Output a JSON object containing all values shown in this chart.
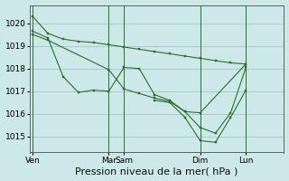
{
  "background_color": "#cce8e8",
  "grid_color": "#aacccc",
  "line_color": "#2d6e2d",
  "ylabel_ticks": [
    1015,
    1016,
    1017,
    1018,
    1019,
    1020
  ],
  "ylim": [
    1014.3,
    1020.8
  ],
  "xlabel": "Pression niveau de la mer( hPa )",
  "xlabel_fontsize": 8,
  "tick_fontsize": 6.5,
  "xlim": [
    -0.2,
    16.5
  ],
  "xtick_positions": [
    0,
    5,
    6,
    11,
    14
  ],
  "xtick_labels": [
    "Ven",
    "Mar",
    "Sam",
    "Dim",
    "Lun"
  ],
  "vline_positions": [
    0,
    5,
    6,
    11,
    14
  ],
  "s1_x": [
    0,
    1,
    2,
    3,
    4,
    5,
    6,
    7,
    8,
    9,
    10,
    11,
    12,
    13,
    14
  ],
  "s1_y": [
    1020.3,
    1019.55,
    1019.3,
    1019.2,
    1019.15,
    1019.05,
    1018.95,
    1018.85,
    1018.75,
    1018.65,
    1018.55,
    1018.45,
    1018.35,
    1018.25,
    1018.2
  ],
  "s2_x": [
    0,
    1,
    2,
    3,
    4,
    5,
    6,
    7,
    8,
    9,
    10,
    11,
    14
  ],
  "s2_y": [
    1019.65,
    1019.35,
    1017.65,
    1016.95,
    1017.05,
    1017.0,
    1018.05,
    1018.0,
    1016.85,
    1016.6,
    1016.1,
    1016.05,
    1018.2
  ],
  "s3_x": [
    0,
    1,
    5,
    6,
    7,
    8,
    9,
    10,
    11,
    12,
    13,
    14
  ],
  "s3_y": [
    1019.5,
    1019.25,
    1017.95,
    1017.1,
    1016.9,
    1016.7,
    1016.55,
    1016.1,
    1015.4,
    1015.15,
    1016.05,
    1018.05
  ],
  "s4_x": [
    8,
    9,
    10,
    11,
    12,
    13,
    14
  ],
  "s4_y": [
    1016.6,
    1016.5,
    1015.85,
    1014.82,
    1014.75,
    1015.85,
    1017.05
  ],
  "lw": 0.8,
  "ms": 2.0
}
